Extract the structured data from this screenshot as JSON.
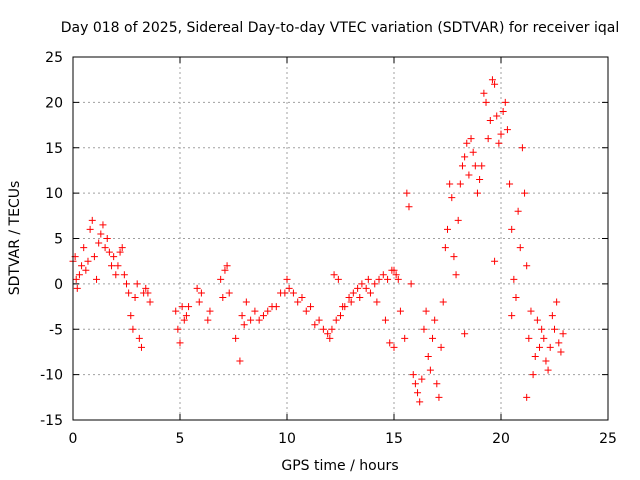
{
  "chart_data": {
    "type": "scatter",
    "title": "Day 018 of 2025, Sidereal Day-to-day VTEC variation (SDTVAR) for receiver iqal",
    "xlabel": "GPS time / hours",
    "ylabel": "SDTVAR / TECUs",
    "xlim": [
      0,
      25
    ],
    "ylim": [
      -15,
      25
    ],
    "xticks": [
      0,
      5,
      10,
      15,
      20,
      25
    ],
    "yticks": [
      -15,
      -10,
      -5,
      0,
      5,
      10,
      15,
      20,
      25
    ],
    "xtick_labels": [
      "0",
      "5",
      "10",
      "15",
      "20",
      "25"
    ],
    "ytick_labels": [
      "-15",
      "-10",
      "-5",
      "0",
      "5",
      "10",
      "15",
      "20",
      "25"
    ],
    "grid": true,
    "marker": "+",
    "series": [
      {
        "name": "iqal",
        "color": "#ff0000",
        "points": [
          [
            0.0,
            2.5
          ],
          [
            0.1,
            3.0
          ],
          [
            0.15,
            0.5
          ],
          [
            0.2,
            -0.5
          ],
          [
            0.3,
            1.0
          ],
          [
            0.4,
            2.0
          ],
          [
            0.5,
            4.0
          ],
          [
            0.6,
            1.5
          ],
          [
            0.7,
            2.5
          ],
          [
            0.8,
            6.0
          ],
          [
            0.9,
            7.0
          ],
          [
            1.0,
            3.0
          ],
          [
            1.1,
            0.5
          ],
          [
            1.2,
            4.5
          ],
          [
            1.3,
            5.5
          ],
          [
            1.4,
            6.5
          ],
          [
            1.5,
            4.0
          ],
          [
            1.6,
            5.0
          ],
          [
            1.7,
            3.5
          ],
          [
            1.8,
            2.0
          ],
          [
            1.9,
            3.0
          ],
          [
            2.0,
            1.0
          ],
          [
            2.1,
            2.0
          ],
          [
            2.2,
            3.5
          ],
          [
            2.3,
            4.0
          ],
          [
            2.4,
            1.0
          ],
          [
            2.5,
            0.0
          ],
          [
            2.6,
            -1.0
          ],
          [
            2.7,
            -3.5
          ],
          [
            2.8,
            -5.0
          ],
          [
            2.9,
            -1.5
          ],
          [
            3.0,
            0.0
          ],
          [
            3.1,
            -6.0
          ],
          [
            3.2,
            -7.0
          ],
          [
            3.3,
            -1.0
          ],
          [
            3.4,
            -0.5
          ],
          [
            3.5,
            -1.0
          ],
          [
            3.6,
            -2.0
          ],
          [
            4.8,
            -3.0
          ],
          [
            4.9,
            -5.0
          ],
          [
            5.0,
            -6.5
          ],
          [
            5.1,
            -2.5
          ],
          [
            5.2,
            -4.0
          ],
          [
            5.3,
            -3.5
          ],
          [
            5.4,
            -2.5
          ],
          [
            5.8,
            -0.5
          ],
          [
            5.9,
            -2.0
          ],
          [
            6.0,
            -1.0
          ],
          [
            6.3,
            -4.0
          ],
          [
            6.4,
            -3.0
          ],
          [
            6.9,
            0.5
          ],
          [
            7.0,
            -1.5
          ],
          [
            7.1,
            1.5
          ],
          [
            7.2,
            2.0
          ],
          [
            7.3,
            -1.0
          ],
          [
            7.6,
            -6.0
          ],
          [
            7.8,
            -8.5
          ],
          [
            7.9,
            -3.5
          ],
          [
            8.0,
            -4.5
          ],
          [
            8.1,
            -2.0
          ],
          [
            8.3,
            -4.0
          ],
          [
            8.5,
            -3.0
          ],
          [
            8.7,
            -4.0
          ],
          [
            8.9,
            -3.5
          ],
          [
            9.1,
            -3.0
          ],
          [
            9.3,
            -2.5
          ],
          [
            9.5,
            -2.5
          ],
          [
            9.7,
            -1.0
          ],
          [
            9.9,
            -1.0
          ],
          [
            10.0,
            0.5
          ],
          [
            10.1,
            -0.5
          ],
          [
            10.3,
            -1.0
          ],
          [
            10.5,
            -2.0
          ],
          [
            10.7,
            -1.5
          ],
          [
            10.9,
            -3.0
          ],
          [
            11.1,
            -2.5
          ],
          [
            11.3,
            -4.5
          ],
          [
            11.5,
            -4.0
          ],
          [
            11.7,
            -5.0
          ],
          [
            11.9,
            -5.5
          ],
          [
            12.0,
            -6.0
          ],
          [
            12.1,
            -5.0
          ],
          [
            12.3,
            -4.0
          ],
          [
            12.5,
            -3.5
          ],
          [
            12.7,
            -2.5
          ],
          [
            12.9,
            -1.5
          ],
          [
            13.1,
            -1.0
          ],
          [
            13.3,
            -0.5
          ],
          [
            13.5,
            0.0
          ],
          [
            13.7,
            -0.5
          ],
          [
            13.9,
            -1.0
          ],
          [
            14.1,
            0.0
          ],
          [
            14.3,
            0.5
          ],
          [
            14.5,
            1.0
          ],
          [
            14.7,
            0.5
          ],
          [
            14.9,
            1.5
          ],
          [
            15.0,
            1.5
          ],
          [
            15.1,
            1.0
          ],
          [
            15.2,
            0.5
          ],
          [
            12.2,
            1.0
          ],
          [
            12.4,
            0.5
          ],
          [
            12.6,
            -2.5
          ],
          [
            13.0,
            -2.0
          ],
          [
            13.4,
            -1.5
          ],
          [
            13.8,
            0.5
          ],
          [
            14.2,
            -2.0
          ],
          [
            14.6,
            -4.0
          ],
          [
            14.8,
            -6.5
          ],
          [
            15.0,
            -7.0
          ],
          [
            15.3,
            -3.0
          ],
          [
            15.5,
            -6.0
          ],
          [
            15.6,
            10.0
          ],
          [
            15.7,
            8.5
          ],
          [
            15.8,
            0.0
          ],
          [
            15.9,
            -10.0
          ],
          [
            16.0,
            -11.0
          ],
          [
            16.1,
            -12.0
          ],
          [
            16.2,
            -13.0
          ],
          [
            16.3,
            -10.5
          ],
          [
            16.4,
            -5.0
          ],
          [
            16.5,
            -3.0
          ],
          [
            16.6,
            -8.0
          ],
          [
            16.7,
            -9.5
          ],
          [
            16.8,
            -6.0
          ],
          [
            16.9,
            -4.0
          ],
          [
            17.0,
            -11.0
          ],
          [
            17.1,
            -12.5
          ],
          [
            17.2,
            -7.0
          ],
          [
            17.3,
            -2.0
          ],
          [
            17.4,
            4.0
          ],
          [
            17.5,
            6.0
          ],
          [
            17.6,
            11.0
          ],
          [
            17.7,
            9.5
          ],
          [
            17.8,
            3.0
          ],
          [
            17.9,
            1.0
          ],
          [
            18.0,
            7.0
          ],
          [
            18.1,
            11.0
          ],
          [
            18.2,
            13.0
          ],
          [
            18.3,
            14.0
          ],
          [
            18.4,
            15.5
          ],
          [
            18.5,
            12.0
          ],
          [
            18.6,
            16.0
          ],
          [
            18.7,
            14.5
          ],
          [
            18.8,
            13.0
          ],
          [
            18.9,
            10.0
          ],
          [
            19.0,
            11.5
          ],
          [
            19.1,
            13.0
          ],
          [
            19.2,
            21.0
          ],
          [
            19.3,
            20.0
          ],
          [
            19.4,
            16.0
          ],
          [
            19.5,
            18.0
          ],
          [
            19.6,
            22.5
          ],
          [
            19.7,
            22.0
          ],
          [
            19.8,
            18.5
          ],
          [
            19.9,
            15.5
          ],
          [
            20.0,
            16.5
          ],
          [
            20.1,
            19.0
          ],
          [
            20.2,
            20.0
          ],
          [
            20.3,
            17.0
          ],
          [
            20.4,
            11.0
          ],
          [
            20.5,
            6.0
          ],
          [
            20.6,
            0.5
          ],
          [
            20.7,
            -1.5
          ],
          [
            20.8,
            8.0
          ],
          [
            20.9,
            4.0
          ],
          [
            21.0,
            15.0
          ],
          [
            21.1,
            10.0
          ],
          [
            21.2,
            2.0
          ],
          [
            21.3,
            -6.0
          ],
          [
            21.4,
            -3.0
          ],
          [
            21.5,
            -10.0
          ],
          [
            21.6,
            -8.0
          ],
          [
            21.7,
            -4.0
          ],
          [
            21.8,
            -7.0
          ],
          [
            21.9,
            -5.0
          ],
          [
            22.0,
            -6.0
          ],
          [
            22.1,
            -8.5
          ],
          [
            22.2,
            -9.5
          ],
          [
            22.3,
            -7.0
          ],
          [
            22.4,
            -3.5
          ],
          [
            22.5,
            -5.0
          ],
          [
            22.6,
            -2.0
          ],
          [
            22.7,
            -6.5
          ],
          [
            22.8,
            -7.5
          ],
          [
            22.9,
            -5.5
          ],
          [
            19.7,
            2.5
          ],
          [
            21.2,
            -12.5
          ],
          [
            20.5,
            -3.5
          ],
          [
            18.3,
            -5.5
          ]
        ]
      }
    ]
  }
}
